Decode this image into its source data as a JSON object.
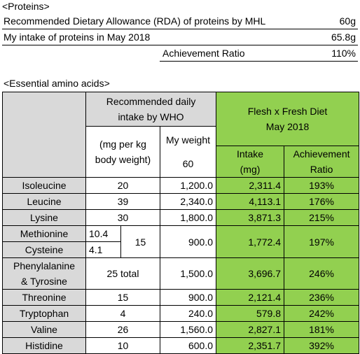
{
  "proteins": {
    "title": "<Proteins>",
    "rows": [
      [
        "Recommended Dietary Allowance (RDA) of proteins by MHL",
        "60g"
      ],
      [
        "My intake of proteins in May 2018",
        "65.8g"
      ],
      [
        "Achievement Ratio",
        "110%"
      ]
    ]
  },
  "amino_acids": {
    "title": "<Essential amino acids>",
    "header": {
      "who": "Recommended daily\nintake by WHO",
      "diet": "Flesh x Fresh Diet\nMay 2018",
      "unit": "(mg per kg\nbody weight)",
      "weight_label": "My weight",
      "weight": "60",
      "intake": "Intake\n(mg)",
      "ratio": "Achievement\nRatio"
    },
    "rows": [
      {
        "name": "Isoleucine",
        "who": "20",
        "by_weight": "1,200.0",
        "intake": "2,311.4",
        "ratio": "193%"
      },
      {
        "name": "Leucine",
        "who": "39",
        "by_weight": "2,340.0",
        "intake": "4,113.1",
        "ratio": "176%"
      },
      {
        "name": "Lysine",
        "who": "30",
        "by_weight": "1,800.0",
        "intake": "3,871.3",
        "ratio": "215%"
      },
      {
        "name": "Methionine",
        "who": "10.4",
        "group_who": "15",
        "by_weight": "900.0",
        "intake": "1,772.4",
        "ratio": "197%"
      },
      {
        "name": "Cysteine",
        "who": "4.1"
      },
      {
        "name": "Phenylalanine\n& Tyrosine",
        "who": "25 total",
        "by_weight": "1,500.0",
        "intake": "3,696.7",
        "ratio": "246%"
      },
      {
        "name": "Threonine",
        "who": "15",
        "by_weight": "900.0",
        "intake": "2,121.4",
        "ratio": "236%"
      },
      {
        "name": "Tryptophan",
        "who": "4",
        "by_weight": "240.0",
        "intake": "579.8",
        "ratio": "242%"
      },
      {
        "name": "Valine",
        "who": "26",
        "by_weight": "1,560.0",
        "intake": "2,827.1",
        "ratio": "181%"
      },
      {
        "name": "Histidine",
        "who": "10",
        "by_weight": "600.0",
        "intake": "2,351.7",
        "ratio": "392%"
      }
    ]
  }
}
